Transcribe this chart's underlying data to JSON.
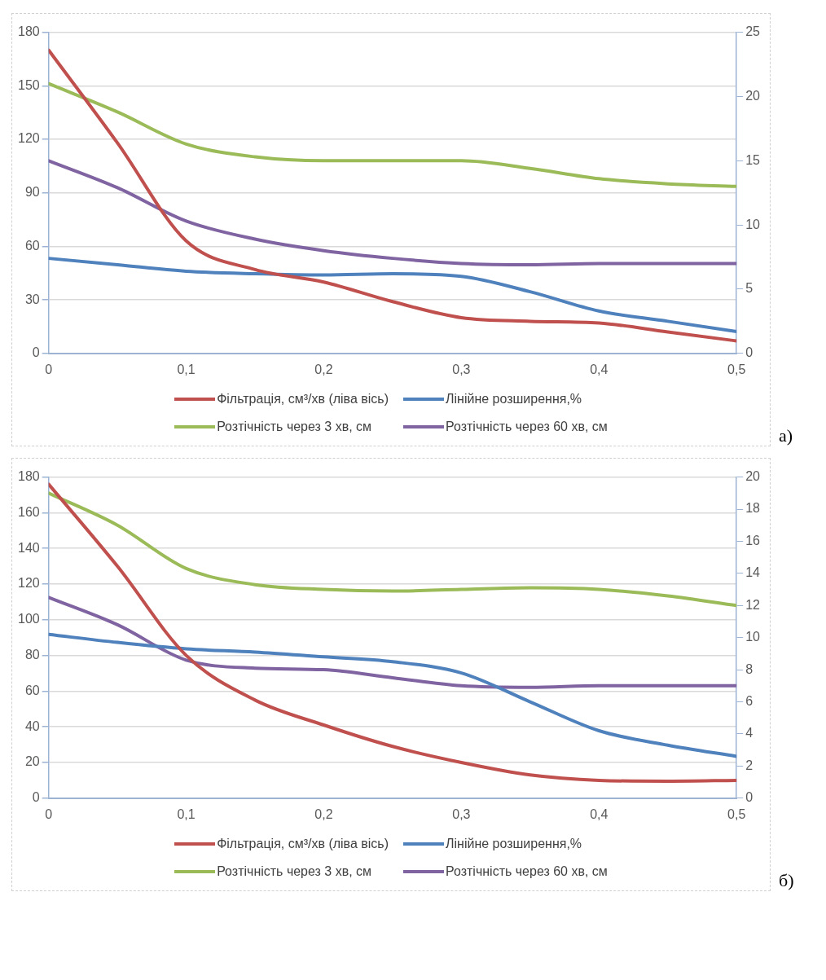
{
  "chart_data": [
    {
      "type": "line",
      "x": [
        0,
        0.05,
        0.1,
        0.15,
        0.2,
        0.25,
        0.3,
        0.35,
        0.4,
        0.45,
        0.5
      ],
      "xlim": [
        0,
        0.5
      ],
      "xticks": [
        0,
        {
          "value": 0.1,
          "label": "0,1"
        },
        {
          "value": 0.2,
          "label": "0,2"
        },
        {
          "value": 0.3,
          "label": "0,3"
        },
        {
          "value": 0.4,
          "label": "0,4"
        },
        {
          "value": 0.5,
          "label": "0,5"
        }
      ],
      "ylim": [
        0,
        180
      ],
      "yticks": [
        0,
        30,
        60,
        90,
        120,
        150,
        180
      ],
      "y2lim": [
        0,
        25
      ],
      "y2ticks": [
        0,
        5,
        10,
        15,
        20,
        25
      ],
      "grid": "y",
      "legend": "bottom",
      "marker": "none",
      "line_style": "solid",
      "annotations": [
        "а)"
      ],
      "series": [
        {
          "name": "Фільтрація, см³/хв (ліва вісь)",
          "color": "#c0504d",
          "values": [
            170,
            118,
            63,
            47,
            40,
            29,
            20,
            18,
            17,
            12,
            7
          ]
        },
        {
          "name": "Лінійне розширення,%",
          "color": "#4f81bd",
          "axis": "y2",
          "values": [
            7.4,
            6.9,
            6.4,
            6.2,
            6.1,
            6.2,
            6.0,
            4.8,
            3.3,
            2.5,
            1.7
          ]
        },
        {
          "name": "Розтічність через 3 хв, см",
          "color": "#9bbb59",
          "axis": "y2",
          "values": [
            21.0,
            18.8,
            16.3,
            15.3,
            15.0,
            15.0,
            15.0,
            14.4,
            13.6,
            13.2,
            13.0
          ]
        },
        {
          "name": "Розтічність через 60 хв, см",
          "color": "#8064a2",
          "axis": "y2",
          "values": [
            15.0,
            12.9,
            10.3,
            8.9,
            8.0,
            7.4,
            7.0,
            6.9,
            7.0,
            7.0,
            7.0
          ]
        }
      ]
    },
    {
      "type": "line",
      "x": [
        0,
        0.05,
        0.1,
        0.15,
        0.2,
        0.25,
        0.3,
        0.35,
        0.4,
        0.45,
        0.5
      ],
      "xlim": [
        0,
        0.5
      ],
      "xticks": [
        0,
        {
          "value": 0.1,
          "label": "0,1"
        },
        {
          "value": 0.2,
          "label": "0,2"
        },
        {
          "value": 0.3,
          "label": "0,3"
        },
        {
          "value": 0.4,
          "label": "0,4"
        },
        {
          "value": 0.5,
          "label": "0,5"
        }
      ],
      "ylim": [
        0,
        180
      ],
      "yticks": [
        0,
        20,
        40,
        60,
        80,
        100,
        120,
        140,
        160,
        180
      ],
      "y2lim": [
        0,
        20
      ],
      "y2ticks": [
        0,
        2,
        4,
        6,
        8,
        10,
        12,
        14,
        16,
        18,
        20
      ],
      "grid": "y",
      "legend": "bottom",
      "marker": "none",
      "line_style": "solid",
      "annotations": [
        "б)"
      ],
      "series": [
        {
          "name": "Фільтрація, см³/хв (ліва вісь)",
          "color": "#c0504d",
          "values": [
            176,
            130,
            80,
            55,
            41,
            29,
            20,
            13,
            10,
            9.5,
            10
          ]
        },
        {
          "name": "Лінійне розширення,%",
          "color": "#4f81bd",
          "axis": "y2",
          "values": [
            10.2,
            9.7,
            9.3,
            9.1,
            8.8,
            8.5,
            7.8,
            6.0,
            4.2,
            3.3,
            2.6
          ]
        },
        {
          "name": "Розтічність через 3 хв, см",
          "color": "#9bbb59",
          "axis": "y2",
          "values": [
            19.0,
            17.0,
            14.3,
            13.3,
            13.0,
            12.9,
            13.0,
            13.1,
            13.0,
            12.6,
            12.0
          ]
        },
        {
          "name": "Розтічність через 60 хв, см",
          "color": "#8064a2",
          "axis": "y2",
          "values": [
            12.5,
            10.8,
            8.6,
            8.1,
            8.0,
            7.5,
            7.0,
            6.9,
            7.0,
            7.0,
            7.0
          ]
        }
      ]
    }
  ]
}
